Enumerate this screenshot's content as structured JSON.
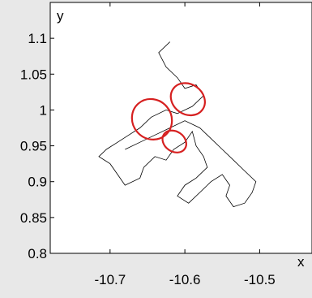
{
  "chart_data": {
    "type": "line",
    "title": "",
    "xlabel": "x",
    "ylabel": "y",
    "xlim": [
      -10.78,
      -10.43
    ],
    "ylim": [
      0.8,
      1.15
    ],
    "x_ticks": [
      -10.7,
      -10.6,
      -10.5
    ],
    "x_tick_labels": [
      "-10.7",
      "-10.6",
      "-10.5"
    ],
    "y_ticks": [
      0.8,
      0.85,
      0.9,
      0.95,
      1.0,
      1.05,
      1.1
    ],
    "y_tick_labels": [
      "0.8",
      "0.85",
      "0.9",
      "0.95",
      "1",
      "1.05",
      "1.1"
    ],
    "grid": false,
    "series": [
      {
        "line_color": "#000000",
        "points": [
          [
            -10.62,
            1.095
          ],
          [
            -10.635,
            1.08
          ],
          [
            -10.625,
            1.06
          ],
          [
            -10.61,
            1.045
          ],
          [
            -10.6,
            1.03
          ],
          [
            -10.585,
            1.035
          ],
          [
            -10.575,
            1.02
          ],
          [
            -10.59,
            1.005
          ],
          [
            -10.61,
            0.995
          ],
          [
            -10.625,
            1.0
          ],
          [
            -10.645,
            0.99
          ],
          [
            -10.66,
            0.975
          ],
          [
            -10.675,
            0.965
          ],
          [
            -10.69,
            0.955
          ],
          [
            -10.705,
            0.945
          ],
          [
            -10.715,
            0.935
          ],
          [
            -10.7,
            0.925
          ],
          [
            -10.69,
            0.91
          ],
          [
            -10.68,
            0.895
          ],
          [
            -10.66,
            0.905
          ],
          [
            -10.655,
            0.92
          ],
          [
            -10.64,
            0.935
          ],
          [
            -10.625,
            0.93
          ],
          [
            -10.615,
            0.945
          ],
          [
            -10.6,
            0.955
          ],
          [
            -10.59,
            0.97
          ],
          [
            -10.585,
            0.95
          ],
          [
            -10.575,
            0.935
          ],
          [
            -10.57,
            0.92
          ],
          [
            -10.585,
            0.905
          ],
          [
            -10.6,
            0.895
          ],
          [
            -10.61,
            0.88
          ],
          [
            -10.595,
            0.87
          ],
          [
            -10.58,
            0.885
          ],
          [
            -10.565,
            0.9
          ],
          [
            -10.55,
            0.91
          ],
          [
            -10.54,
            0.895
          ],
          [
            -10.545,
            0.88
          ],
          [
            -10.535,
            0.865
          ],
          [
            -10.52,
            0.87
          ],
          [
            -10.51,
            0.885
          ],
          [
            -10.505,
            0.9
          ],
          [
            -10.52,
            0.915
          ],
          [
            -10.535,
            0.93
          ],
          [
            -10.55,
            0.945
          ],
          [
            -10.565,
            0.96
          ],
          [
            -10.58,
            0.975
          ],
          [
            -10.6,
            0.985
          ],
          [
            -10.62,
            0.975
          ],
          [
            -10.64,
            0.965
          ],
          [
            -10.66,
            0.955
          ],
          [
            -10.68,
            0.945
          ]
        ]
      }
    ],
    "annotations": [
      {
        "shape": "ellipse",
        "color": "#d62020",
        "cx": -10.644,
        "cy": 0.987,
        "rx": 0.026,
        "ry": 0.029,
        "rotate": -40
      },
      {
        "shape": "ellipse",
        "color": "#d62020",
        "cx": -10.596,
        "cy": 1.015,
        "rx": 0.024,
        "ry": 0.021,
        "rotate": 35
      },
      {
        "shape": "ellipse",
        "color": "#d62020",
        "cx": -10.614,
        "cy": 0.956,
        "rx": 0.017,
        "ry": 0.014,
        "rotate": 35
      }
    ]
  }
}
